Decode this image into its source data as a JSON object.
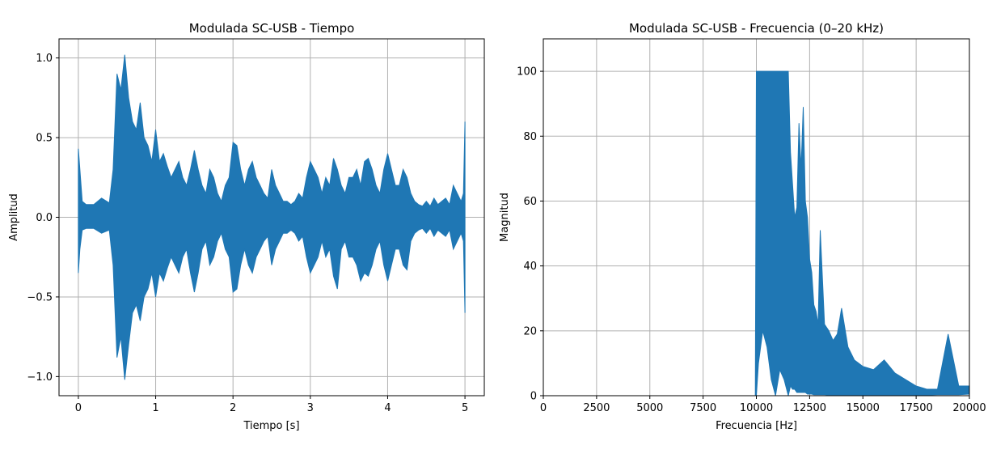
{
  "chart_data": [
    {
      "type": "line",
      "title": "Modulada SC-USB - Tiempo",
      "xlabel": "Tiempo [s]",
      "ylabel": "Amplitud",
      "xlim": [
        -0.25,
        5.25
      ],
      "ylim": [
        -1.12,
        1.12
      ],
      "xticks": [
        0,
        1,
        2,
        3,
        4,
        5
      ],
      "xtick_labels": [
        "0",
        "1",
        "2",
        "3",
        "4",
        "5"
      ],
      "yticks": [
        -1.0,
        -0.5,
        0.0,
        0.5,
        1.0
      ],
      "ytick_labels": [
        "−1.0",
        "−0.5",
        "0.0",
        "0.5",
        "1.0"
      ],
      "grid": true,
      "color": "#1f77b4",
      "series": [
        {
          "x": [
            0.0,
            0.02,
            0.05,
            0.1,
            0.2,
            0.3,
            0.4,
            0.45,
            0.5,
            0.55,
            0.6,
            0.65,
            0.7,
            0.75,
            0.8,
            0.85,
            0.9,
            0.95,
            1.0,
            1.05,
            1.1,
            1.15,
            1.2,
            1.25,
            1.3,
            1.35,
            1.4,
            1.45,
            1.5,
            1.55,
            1.6,
            1.65,
            1.7,
            1.75,
            1.8,
            1.85,
            1.9,
            1.95,
            2.0,
            2.05,
            2.1,
            2.15,
            2.2,
            2.25,
            2.3,
            2.35,
            2.4,
            2.45,
            2.5,
            2.55,
            2.6,
            2.65,
            2.7,
            2.75,
            2.8,
            2.85,
            2.9,
            2.95,
            3.0,
            3.05,
            3.1,
            3.15,
            3.2,
            3.25,
            3.3,
            3.35,
            3.4,
            3.45,
            3.5,
            3.55,
            3.6,
            3.65,
            3.7,
            3.75,
            3.8,
            3.85,
            3.9,
            3.95,
            4.0,
            4.05,
            4.1,
            4.15,
            4.2,
            4.25,
            4.3,
            4.35,
            4.4,
            4.45,
            4.5,
            4.55,
            4.6,
            4.65,
            4.7,
            4.75,
            4.8,
            4.85,
            4.9,
            4.95,
            4.98,
            5.0
          ],
          "upper": [
            0.43,
            0.3,
            0.1,
            0.08,
            0.08,
            0.12,
            0.09,
            0.3,
            0.9,
            0.8,
            1.02,
            0.75,
            0.6,
            0.55,
            0.72,
            0.5,
            0.45,
            0.35,
            0.55,
            0.35,
            0.4,
            0.32,
            0.25,
            0.3,
            0.35,
            0.25,
            0.2,
            0.3,
            0.42,
            0.3,
            0.2,
            0.15,
            0.3,
            0.25,
            0.15,
            0.1,
            0.2,
            0.25,
            0.47,
            0.45,
            0.3,
            0.2,
            0.3,
            0.35,
            0.25,
            0.2,
            0.15,
            0.12,
            0.3,
            0.2,
            0.15,
            0.1,
            0.1,
            0.08,
            0.1,
            0.15,
            0.12,
            0.25,
            0.35,
            0.3,
            0.25,
            0.15,
            0.25,
            0.2,
            0.37,
            0.3,
            0.2,
            0.15,
            0.25,
            0.25,
            0.3,
            0.2,
            0.35,
            0.37,
            0.3,
            0.2,
            0.15,
            0.3,
            0.4,
            0.3,
            0.2,
            0.2,
            0.3,
            0.25,
            0.15,
            0.1,
            0.08,
            0.07,
            0.1,
            0.07,
            0.12,
            0.08,
            0.1,
            0.12,
            0.08,
            0.2,
            0.15,
            0.1,
            0.15,
            0.6
          ],
          "lower": [
            -0.35,
            -0.2,
            -0.08,
            -0.07,
            -0.07,
            -0.1,
            -0.08,
            -0.3,
            -0.88,
            -0.75,
            -1.02,
            -0.8,
            -0.6,
            -0.55,
            -0.65,
            -0.5,
            -0.45,
            -0.35,
            -0.5,
            -0.35,
            -0.4,
            -0.32,
            -0.25,
            -0.3,
            -0.35,
            -0.25,
            -0.2,
            -0.35,
            -0.47,
            -0.35,
            -0.2,
            -0.15,
            -0.3,
            -0.25,
            -0.15,
            -0.1,
            -0.2,
            -0.25,
            -0.47,
            -0.45,
            -0.3,
            -0.2,
            -0.3,
            -0.35,
            -0.25,
            -0.2,
            -0.15,
            -0.12,
            -0.3,
            -0.2,
            -0.15,
            -0.1,
            -0.1,
            -0.08,
            -0.1,
            -0.15,
            -0.12,
            -0.25,
            -0.35,
            -0.3,
            -0.25,
            -0.15,
            -0.25,
            -0.2,
            -0.37,
            -0.45,
            -0.2,
            -0.15,
            -0.25,
            -0.25,
            -0.3,
            -0.4,
            -0.35,
            -0.37,
            -0.3,
            -0.2,
            -0.15,
            -0.3,
            -0.4,
            -0.3,
            -0.2,
            -0.2,
            -0.3,
            -0.33,
            -0.15,
            -0.1,
            -0.08,
            -0.07,
            -0.1,
            -0.07,
            -0.12,
            -0.08,
            -0.1,
            -0.12,
            -0.08,
            -0.2,
            -0.15,
            -0.1,
            -0.15,
            -0.6
          ]
        }
      ]
    },
    {
      "type": "line",
      "title": "Modulada SC-USB - Frecuencia (0–20 kHz)",
      "xlabel": "Frecuencia [Hz]",
      "ylabel": "Magnitud",
      "xlim": [
        0,
        20000
      ],
      "ylim": [
        0,
        110
      ],
      "xticks": [
        0,
        2500,
        5000,
        7500,
        10000,
        12500,
        15000,
        17500,
        20000
      ],
      "xtick_labels": [
        "0",
        "2500",
        "5000",
        "7500",
        "10000",
        "12500",
        "15000",
        "17500",
        "20000"
      ],
      "yticks": [
        0,
        20,
        40,
        60,
        80,
        100
      ],
      "ytick_labels": [
        "0",
        "20",
        "40",
        "60",
        "80",
        "100"
      ],
      "grid": true,
      "color": "#1f77b4",
      "series": [
        {
          "x": [
            0,
            9950,
            10000,
            10100,
            10300,
            10500,
            10700,
            10900,
            11100,
            11300,
            11500,
            11600,
            11700,
            11800,
            11900,
            12000,
            12100,
            12200,
            12300,
            12400,
            12500,
            12600,
            12700,
            12800,
            12900,
            13000,
            13200,
            13400,
            13600,
            13800,
            14000,
            14300,
            14600,
            15000,
            15500,
            16000,
            16500,
            17000,
            17500,
            18000,
            18500,
            19000,
            19500,
            20000
          ],
          "upper": [
            0,
            0,
            100,
            100,
            100,
            100,
            100,
            100,
            100,
            100,
            100,
            75,
            65,
            55,
            58,
            84,
            70,
            89,
            60,
            55,
            42,
            38,
            28,
            26,
            22,
            51,
            22,
            20,
            17,
            19,
            27,
            15,
            11,
            9,
            8,
            11,
            7,
            5,
            3,
            2,
            2,
            19,
            3,
            3
          ],
          "lower": [
            0,
            0,
            0,
            10,
            20,
            15,
            5,
            0,
            8,
            5,
            0,
            3,
            2,
            2,
            1,
            1,
            1,
            1,
            1,
            0.5,
            0.5,
            0.5,
            0.3,
            0.3,
            0.3,
            0.3,
            0.3,
            0.2,
            0.2,
            0.2,
            0.2,
            0.2,
            0.2,
            0.2,
            0.2,
            0.2,
            0.2,
            0.2,
            0.2,
            0.2,
            0.3,
            0.3,
            0.3,
            0.5
          ]
        }
      ]
    }
  ]
}
